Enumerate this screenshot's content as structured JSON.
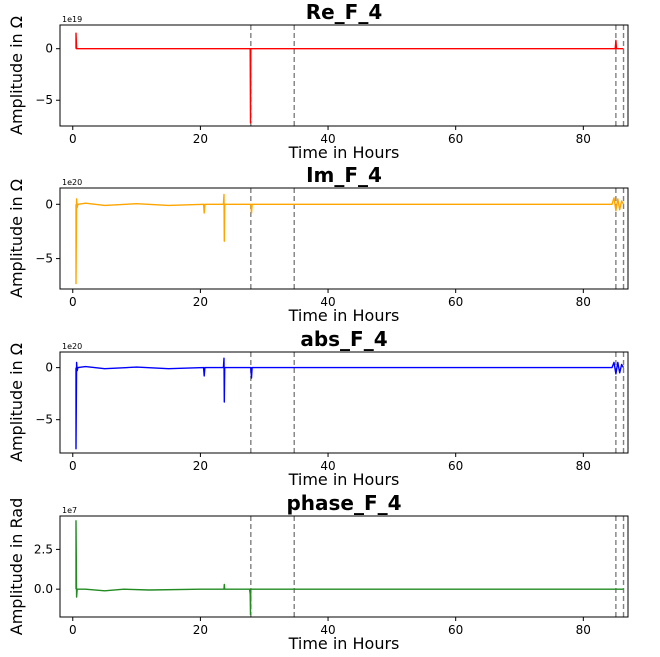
{
  "chart_data": [
    {
      "type": "line",
      "title": "Re_F_4",
      "xlabel": "Time in Hours",
      "ylabel": "Amplitude in Ω",
      "offset_text": "1e19",
      "color": "#ff0000",
      "xlim": [
        -2,
        87
      ],
      "ylim": [
        -7.5,
        2.3
      ],
      "xticks": [
        0,
        20,
        40,
        60,
        80
      ],
      "xtick_labels": [
        "0",
        "20",
        "40",
        "60",
        "80"
      ],
      "yticks": [
        0,
        -5
      ],
      "ytick_labels": [
        "0",
        "−5"
      ],
      "vlines": [
        27.9,
        34.7,
        85.1,
        86.3
      ],
      "series": [
        {
          "name": "Re_F_4",
          "x": [
            0.5,
            0.5,
            0.6,
            27.7,
            27.8,
            27.85,
            27.9,
            28.0,
            85.0,
            85.1,
            85.2,
            85.3,
            86.3
          ],
          "y": [
            0,
            1.5,
            0,
            0,
            0,
            -7.2,
            0,
            0,
            0,
            0.8,
            0,
            0,
            0
          ]
        }
      ]
    },
    {
      "type": "line",
      "title": "Im_F_4",
      "xlabel": "Time in Hours",
      "ylabel": "Amplitude in Ω",
      "offset_text": "1e20",
      "color": "#ffa500",
      "xlim": [
        -2,
        87
      ],
      "ylim": [
        -7.8,
        1.5
      ],
      "xticks": [
        0,
        20,
        40,
        60,
        80
      ],
      "xtick_labels": [
        "0",
        "20",
        "40",
        "60",
        "80"
      ],
      "yticks": [
        0,
        -5
      ],
      "ytick_labels": [
        "0",
        "−5"
      ],
      "vlines": [
        27.9,
        34.7,
        85.1,
        86.3
      ],
      "series": [
        {
          "name": "Im_F_4",
          "x": [
            0.5,
            0.5,
            0.6,
            0.7,
            0.8,
            2.0,
            5.0,
            10.0,
            15.0,
            20.5,
            20.6,
            20.7,
            23.6,
            23.7,
            23.75,
            23.8,
            27.9,
            28.0,
            28.1,
            50.0,
            84.5,
            84.8,
            85.1,
            85.4,
            85.7,
            86.0,
            86.3
          ],
          "y": [
            0,
            -7.3,
            0.5,
            -0.3,
            0,
            0.1,
            -0.1,
            0.05,
            -0.1,
            0,
            -0.8,
            0,
            0,
            0.9,
            -3.4,
            0,
            0,
            -0.8,
            0,
            0,
            0,
            0.6,
            -0.6,
            0.5,
            -0.5,
            0.3,
            0
          ]
        }
      ]
    },
    {
      "type": "line",
      "title": "abs_F_4",
      "xlabel": "Time in Hours",
      "ylabel": "Amplitude in Ω",
      "offset_text": "1e20",
      "color": "#0000ff",
      "xlim": [
        -2,
        87
      ],
      "ylim": [
        -8.2,
        1.5
      ],
      "xticks": [
        0,
        20,
        40,
        60,
        80
      ],
      "xtick_labels": [
        "0",
        "20",
        "40",
        "60",
        "80"
      ],
      "yticks": [
        0,
        -5
      ],
      "ytick_labels": [
        "0",
        "−5"
      ],
      "vlines": [
        27.9,
        34.7,
        85.1,
        86.3
      ],
      "series": [
        {
          "name": "abs_F_4",
          "x": [
            0.5,
            0.5,
            0.6,
            0.7,
            0.8,
            2.0,
            5.0,
            10.0,
            15.0,
            20.5,
            20.6,
            20.7,
            23.6,
            23.7,
            23.75,
            23.8,
            27.9,
            28.0,
            28.1,
            50.0,
            84.5,
            84.8,
            85.1,
            85.4,
            85.7,
            86.0,
            86.3
          ],
          "y": [
            0,
            -7.8,
            0.5,
            -0.3,
            0,
            0.1,
            -0.1,
            0.05,
            -0.1,
            0,
            -0.8,
            0,
            0,
            0.9,
            -3.3,
            0,
            0,
            -1.0,
            0,
            0,
            0,
            0.5,
            -0.6,
            0.5,
            -0.5,
            0.3,
            0
          ]
        }
      ]
    },
    {
      "type": "line",
      "title": "phase_F_4",
      "xlabel": "Time in Hours",
      "ylabel": "Amplitude in Rad",
      "offset_text": "1e7",
      "color": "#228b22",
      "xlim": [
        -2,
        87
      ],
      "ylim": [
        -1.75,
        4.6
      ],
      "xticks": [
        0,
        20,
        40,
        60,
        80
      ],
      "xtick_labels": [
        "0",
        "20",
        "40",
        "60",
        "80"
      ],
      "yticks": [
        2.5,
        0.0
      ],
      "ytick_labels": [
        "2.5",
        "0.0"
      ],
      "vlines": [
        27.9,
        34.7,
        85.1,
        86.3
      ],
      "series": [
        {
          "name": "phase_F_4",
          "x": [
            0.5,
            0.5,
            0.6,
            0.7,
            2.0,
            5.0,
            8.0,
            12.0,
            20.0,
            23.7,
            23.75,
            23.8,
            27.7,
            27.8,
            27.85,
            27.9,
            28.0,
            86.3
          ],
          "y": [
            0,
            4.3,
            -0.5,
            0,
            0,
            -0.1,
            0,
            -0.05,
            0,
            0,
            0.3,
            0,
            0,
            -0.3,
            -1.6,
            0,
            0,
            0
          ]
        }
      ]
    }
  ]
}
